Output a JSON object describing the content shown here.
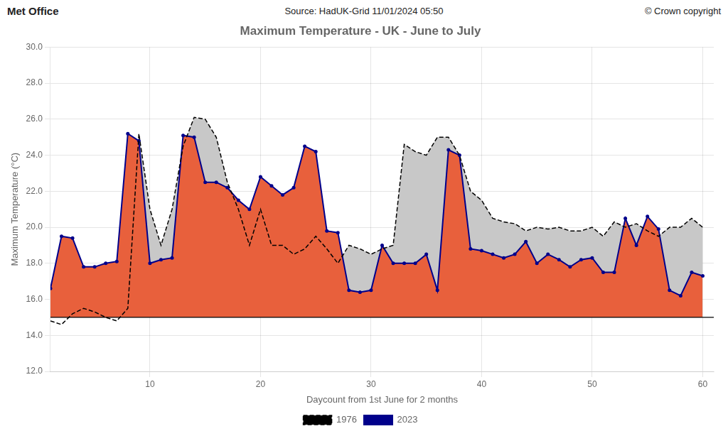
{
  "chart_data": {
    "type": "line",
    "title": "Maximum Temperature - UK - June to July",
    "x_label": "Daycount from 1st June for 2 months",
    "y_label": "Maximum Temperature (°C)",
    "annotations": [
      "Met Office",
      "Source: HadUK-Grid 11/01/2024 05:50",
      "© Crown copyright"
    ],
    "x": [
      1,
      2,
      3,
      4,
      5,
      6,
      7,
      8,
      9,
      10,
      11,
      12,
      13,
      14,
      15,
      16,
      17,
      18,
      19,
      20,
      21,
      22,
      23,
      24,
      25,
      26,
      27,
      28,
      29,
      30,
      31,
      32,
      33,
      34,
      35,
      36,
      37,
      38,
      39,
      40,
      41,
      42,
      43,
      44,
      45,
      46,
      47,
      48,
      49,
      50,
      51,
      52,
      53,
      54,
      55,
      56,
      57,
      58,
      59,
      60
    ],
    "series": [
      {
        "name": "1976",
        "color": "#000000",
        "line_style": "dashed",
        "values": [
          14.8,
          14.6,
          15.2,
          15.5,
          15.3,
          15.0,
          14.8,
          15.5,
          25.2,
          21.0,
          19.0,
          21.0,
          24.5,
          26.1,
          26.0,
          25.0,
          22.5,
          21.0,
          19.0,
          21.0,
          19.0,
          19.0,
          18.5,
          18.8,
          19.5,
          18.8,
          18.0,
          19.0,
          18.8,
          18.5,
          18.8,
          19.0,
          24.6,
          24.2,
          24.0,
          25.0,
          25.0,
          24.0,
          22.0,
          21.5,
          20.5,
          20.3,
          20.2,
          19.8,
          20.0,
          19.9,
          20.0,
          19.8,
          19.8,
          20.0,
          19.5,
          20.3,
          20.0,
          20.2,
          19.8,
          19.5,
          20.0,
          20.0,
          20.5,
          20.0
        ]
      },
      {
        "name": "2023",
        "color": "#00008B",
        "line_style": "solid",
        "marker": "circle",
        "values": [
          16.6,
          19.5,
          19.4,
          17.8,
          17.8,
          18.0,
          18.1,
          25.2,
          24.8,
          18.0,
          18.2,
          18.3,
          25.1,
          25.0,
          22.5,
          22.5,
          22.2,
          21.5,
          21.0,
          22.8,
          22.3,
          21.8,
          22.2,
          24.5,
          24.2,
          19.8,
          19.7,
          16.5,
          16.4,
          16.5,
          19.0,
          18.0,
          18.0,
          18.0,
          18.5,
          16.5,
          24.3,
          24.0,
          18.8,
          18.7,
          18.5,
          18.3,
          18.5,
          19.2,
          18.0,
          18.5,
          18.2,
          17.8,
          18.2,
          18.3,
          17.5,
          17.5,
          20.5,
          19.0,
          20.6,
          19.9,
          16.5,
          16.2,
          17.5,
          17.3
        ]
      }
    ],
    "baseline": {
      "value": 15.0,
      "color": "#000000"
    },
    "fills": [
      {
        "from": 15.0,
        "to": "2023",
        "color": "#E8603C"
      },
      {
        "from": "2023",
        "to": "1976",
        "color": "#C8C8C8"
      }
    ],
    "xlim": [
      1,
      61
    ],
    "xticks": [
      10,
      20,
      30,
      40,
      50,
      60
    ],
    "ylim": [
      12.0,
      30.0
    ],
    "yticks": [
      {
        "value": 12.0,
        "label": "12.0"
      },
      {
        "value": 14.0,
        "label": "14.0"
      },
      {
        "value": 16.0,
        "label": "16.0"
      },
      {
        "value": 18.0,
        "label": "18.0"
      },
      {
        "value": 20.0,
        "label": "20.0"
      },
      {
        "value": 22.0,
        "label": "22.0"
      },
      {
        "value": 24.0,
        "label": "24.0"
      },
      {
        "value": 26.0,
        "label": "26.0"
      },
      {
        "value": 28.0,
        "label": "28.0"
      },
      {
        "value": 30.0,
        "label": "30.0"
      }
    ],
    "grid": true,
    "legend": "bottom"
  }
}
